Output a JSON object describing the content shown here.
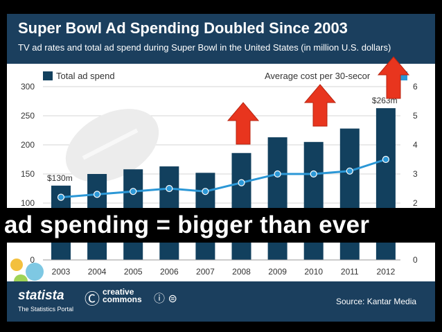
{
  "header": {
    "title": "Super Bowl Ad Spending Doubled Since 2003",
    "subtitle": "TV ad rates and total ad spend during Super Bowl in the United States (in million U.S. dollars)"
  },
  "banner": {
    "text": "ad spending = bigger than ever"
  },
  "footer": {
    "brand": "statista",
    "tagline": "The Statistics Portal",
    "license": "creative commons",
    "license_icons": "ⓘ ⊜",
    "source": "Source: Kantar Media"
  },
  "chart_data": {
    "type": "bar",
    "categories": [
      "2003",
      "2004",
      "2005",
      "2006",
      "2007",
      "2008",
      "2009",
      "2010",
      "2011",
      "2012"
    ],
    "series": [
      {
        "name": "Total ad spend",
        "kind": "bar",
        "axis": "left",
        "color": "#12405e",
        "values": [
          130,
          150,
          158,
          163,
          152,
          186,
          213,
          205,
          228,
          263
        ]
      },
      {
        "name": "Average cost per 30-secor",
        "kind": "line",
        "axis": "right",
        "color": "#2b97d6",
        "values": [
          2.2,
          2.3,
          2.4,
          2.5,
          2.4,
          2.7,
          3.0,
          3.0,
          3.1,
          3.5
        ]
      }
    ],
    "left_axis": {
      "ticks": [
        "0",
        "100",
        "150",
        "200",
        "250",
        "300"
      ],
      "range": [
        0,
        300
      ]
    },
    "right_axis": {
      "ticks": [
        "0",
        "2",
        "3",
        "4",
        "5",
        "6"
      ],
      "range": [
        0,
        6
      ]
    },
    "annotations": [
      {
        "category": "2003",
        "text": "$130m"
      },
      {
        "category": "2012",
        "text": "$263m"
      }
    ],
    "arrow_color": "#e8351e"
  }
}
